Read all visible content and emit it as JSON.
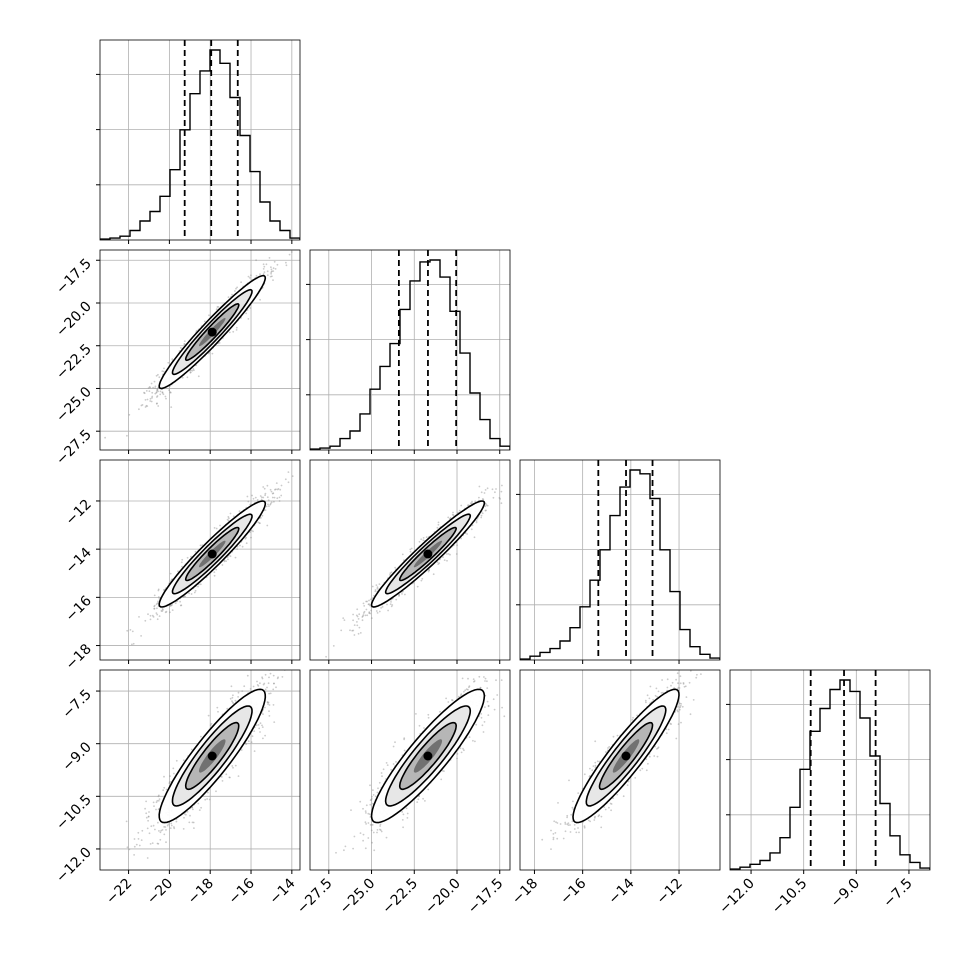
{
  "chart_data": {
    "type": "corner",
    "grid": true,
    "parameters": [
      {
        "range": [
          -23.4,
          -13.6
        ],
        "ticks": [
          -22,
          -20,
          -18,
          -16,
          -14
        ],
        "tick_labels": [
          "−22",
          "−20",
          "−18",
          "−16",
          "−14"
        ],
        "quantiles": [
          -19.25,
          -17.95,
          -16.65
        ],
        "hist_peak": -17.9
      },
      {
        "range": [
          -28.6,
          -16.9
        ],
        "ticks": [
          -27.5,
          -25.0,
          -22.5,
          -20.0,
          -17.5
        ],
        "tick_labels": [
          "−27.5",
          "−25.0",
          "−22.5",
          "−20.0",
          "−17.5"
        ],
        "quantiles": [
          -23.4,
          -21.7,
          -20.05
        ],
        "hist_peak": -21.8
      },
      {
        "range": [
          -18.6,
          -10.3
        ],
        "ticks": [
          -18,
          -16,
          -14,
          -12
        ],
        "tick_labels": [
          "−18",
          "−16",
          "−14",
          "−12"
        ],
        "quantiles": [
          -15.35,
          -14.2,
          -13.1
        ],
        "hist_peak": -14.3
      },
      {
        "range": [
          -12.6,
          -6.9
        ],
        "ticks": [
          -12.0,
          -10.5,
          -9.0,
          -7.5
        ],
        "tick_labels": [
          "−12.0",
          "−10.5",
          "−9.0",
          "−7.5"
        ],
        "quantiles": [
          -10.3,
          -9.35,
          -8.45
        ],
        "hist_peak": -9.35
      }
    ],
    "histograms": [
      {
        "bin_edges": [
          -23.4,
          -22.91,
          -22.42,
          -21.93,
          -21.44,
          -20.95,
          -20.46,
          -19.97,
          -19.48,
          -18.99,
          -18.5,
          -18.01,
          -17.52,
          -17.03,
          -16.54,
          -16.05,
          -15.56,
          -15.07,
          -14.58,
          -14.09,
          -13.6
        ],
        "counts": [
          0.005,
          0.01,
          0.02,
          0.05,
          0.1,
          0.15,
          0.23,
          0.37,
          0.58,
          0.77,
          0.89,
          1.0,
          0.93,
          0.75,
          0.55,
          0.36,
          0.2,
          0.1,
          0.05,
          0.01
        ]
      },
      {
        "bin_edges": [
          -28.6,
          -28.015,
          -27.43,
          -26.845,
          -26.26,
          -25.675,
          -25.09,
          -24.505,
          -23.92,
          -23.335,
          -22.75,
          -22.165,
          -21.58,
          -20.995,
          -20.41,
          -19.825,
          -19.24,
          -18.655,
          -18.07,
          -17.485,
          -16.9
        ],
        "counts": [
          0.005,
          0.01,
          0.02,
          0.06,
          0.1,
          0.19,
          0.32,
          0.44,
          0.56,
          0.74,
          0.89,
          0.99,
          1.0,
          0.91,
          0.73,
          0.51,
          0.3,
          0.16,
          0.06,
          0.02
        ]
      },
      {
        "bin_edges": [
          -18.6,
          -18.185,
          -17.77,
          -17.355,
          -16.94,
          -16.525,
          -16.11,
          -15.695,
          -15.28,
          -14.865,
          -14.45,
          -14.035,
          -13.62,
          -13.205,
          -12.79,
          -12.375,
          -11.96,
          -11.545,
          -11.13,
          -10.715,
          -10.3
        ],
        "counts": [
          0.005,
          0.02,
          0.04,
          0.06,
          0.1,
          0.17,
          0.28,
          0.42,
          0.58,
          0.76,
          0.91,
          1.0,
          0.98,
          0.85,
          0.58,
          0.36,
          0.16,
          0.07,
          0.03,
          0.01
        ]
      },
      {
        "bin_edges": [
          -12.6,
          -12.315,
          -12.03,
          -11.745,
          -11.46,
          -11.175,
          -10.89,
          -10.605,
          -10.32,
          -10.035,
          -9.75,
          -9.465,
          -9.18,
          -8.895,
          -8.61,
          -8.325,
          -8.04,
          -7.755,
          -7.47,
          -7.185,
          -6.9
        ],
        "counts": [
          0.005,
          0.015,
          0.03,
          0.05,
          0.09,
          0.17,
          0.33,
          0.53,
          0.73,
          0.85,
          0.95,
          1.0,
          0.94,
          0.8,
          0.6,
          0.35,
          0.18,
          0.08,
          0.04,
          0.01
        ]
      }
    ],
    "pairs": [
      {
        "x": 0,
        "y": 1,
        "center": [
          -17.9,
          -21.7
        ],
        "sd": [
          1.3,
          1.65
        ],
        "corr": 0.96
      },
      {
        "x": 0,
        "y": 2,
        "center": [
          -17.9,
          -14.2
        ],
        "sd": [
          1.3,
          1.1
        ],
        "corr": 0.95
      },
      {
        "x": 1,
        "y": 2,
        "center": [
          -21.7,
          -14.2
        ],
        "sd": [
          1.65,
          1.1
        ],
        "corr": 0.96
      },
      {
        "x": 0,
        "y": 3,
        "center": [
          -17.9,
          -9.35
        ],
        "sd": [
          1.3,
          0.95
        ],
        "corr": 0.9
      },
      {
        "x": 1,
        "y": 3,
        "center": [
          -21.7,
          -9.35
        ],
        "sd": [
          1.65,
          0.95
        ],
        "corr": 0.9
      },
      {
        "x": 2,
        "y": 3,
        "center": [
          -14.2,
          -9.35
        ],
        "sd": [
          1.1,
          0.95
        ],
        "corr": 0.92
      }
    ],
    "contour_levels_sigma": [
      0.5,
      1.0,
      1.5,
      2.0
    ]
  }
}
